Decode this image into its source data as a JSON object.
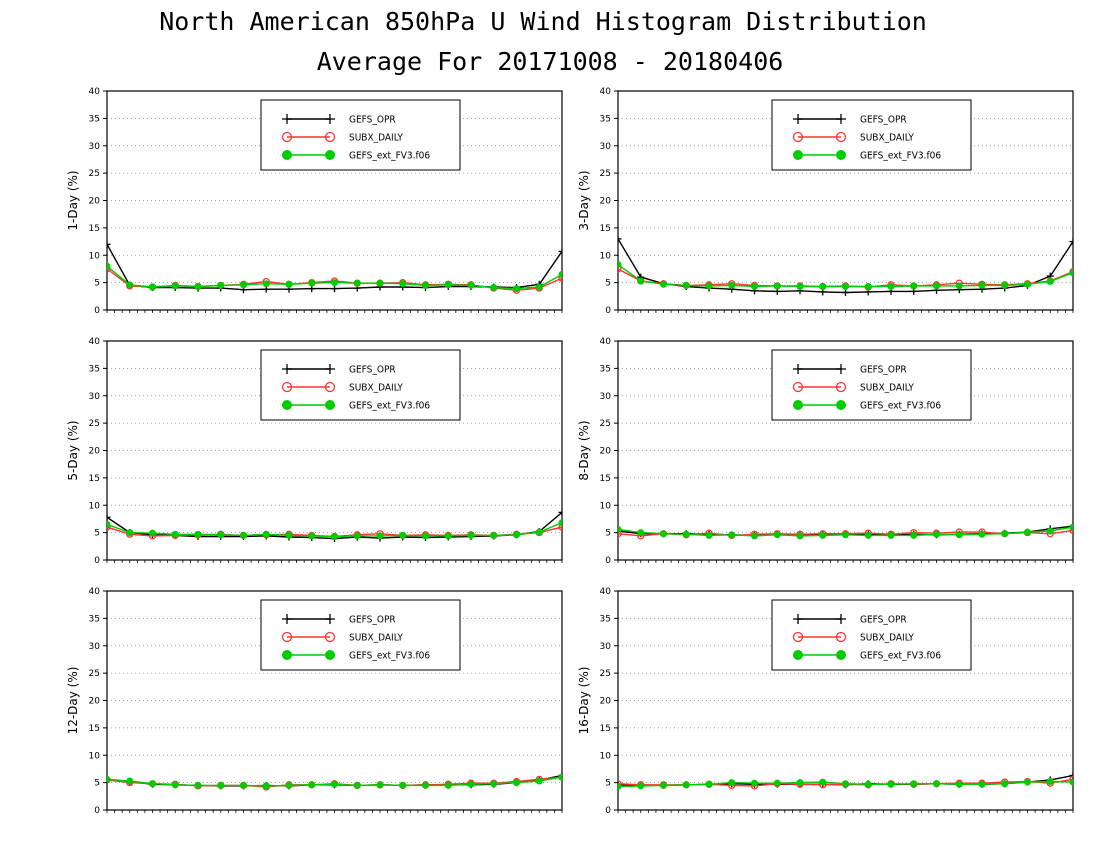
{
  "title": "North American 850hPa U Wind Histogram Distribution",
  "subtitle": "Average For 20171008 - 20180406",
  "colors": {
    "GEFS_OPR": "#000000",
    "SUBX_DAILY": "#ff3333",
    "GEFS_ext_FV3.f06": "#00cc00",
    "extra": "#3355ff"
  },
  "chart_data": [
    {
      "type": "line",
      "ylabel": "1-Day (%)",
      "ylim": [
        0,
        40
      ],
      "yticks": [
        0,
        5,
        10,
        15,
        20,
        25,
        30,
        35,
        40
      ],
      "grid": true,
      "legend": "top-center",
      "x": [
        1,
        2,
        3,
        4,
        5,
        6,
        7,
        8,
        9,
        10,
        11,
        12,
        13,
        14,
        15,
        16,
        17,
        18,
        19,
        20,
        21
      ],
      "series": [
        {
          "name": "GEFS_OPR",
          "marker": "plus",
          "values": [
            12.0,
            4.5,
            4.1,
            4.1,
            4.0,
            4.0,
            3.7,
            3.8,
            3.8,
            3.9,
            3.9,
            4.0,
            4.2,
            4.2,
            4.1,
            4.3,
            4.3,
            4.2,
            4.1,
            4.7,
            10.7
          ]
        },
        {
          "name": "SUBX_DAILY",
          "marker": "circle",
          "values": [
            7.5,
            4.4,
            4.2,
            4.5,
            4.3,
            4.5,
            4.7,
            5.2,
            4.7,
            5.0,
            5.3,
            4.9,
            4.9,
            5.0,
            4.6,
            4.7,
            4.6,
            4.0,
            3.6,
            4.0,
            5.8
          ]
        },
        {
          "name": "GEFS_ext_FV3.f06",
          "marker": "dot",
          "values": [
            8.0,
            4.6,
            4.2,
            4.4,
            4.3,
            4.5,
            4.6,
            4.8,
            4.7,
            4.9,
            5.0,
            4.9,
            4.9,
            4.8,
            4.5,
            4.6,
            4.5,
            4.1,
            3.9,
            4.2,
            6.5
          ]
        }
      ]
    },
    {
      "type": "line",
      "ylabel": "3-Day (%)",
      "ylim": [
        0,
        40
      ],
      "yticks": [
        0,
        5,
        10,
        15,
        20,
        25,
        30,
        35,
        40
      ],
      "grid": true,
      "legend": "top-center",
      "x": [
        1,
        2,
        3,
        4,
        5,
        6,
        7,
        8,
        9,
        10,
        11,
        12,
        13,
        14,
        15,
        16,
        17,
        18,
        19,
        20,
        21
      ],
      "series": [
        {
          "name": "GEFS_OPR",
          "marker": "plus",
          "values": [
            13.0,
            6.0,
            4.8,
            4.3,
            4.0,
            3.8,
            3.5,
            3.4,
            3.5,
            3.3,
            3.2,
            3.3,
            3.4,
            3.4,
            3.6,
            3.7,
            3.8,
            4.0,
            4.5,
            6.2,
            12.5
          ]
        },
        {
          "name": "SUBX_DAILY",
          "marker": "circle",
          "values": [
            7.5,
            5.3,
            4.8,
            4.5,
            4.6,
            4.8,
            4.5,
            4.4,
            4.4,
            4.3,
            4.4,
            4.2,
            4.6,
            4.4,
            4.6,
            4.9,
            4.7,
            4.6,
            4.8,
            5.3,
            7.0
          ]
        },
        {
          "name": "GEFS_ext_FV3.f06",
          "marker": "dot",
          "values": [
            8.3,
            5.3,
            4.7,
            4.5,
            4.4,
            4.5,
            4.3,
            4.4,
            4.3,
            4.3,
            4.3,
            4.3,
            4.3,
            4.4,
            4.4,
            4.4,
            4.5,
            4.5,
            4.7,
            5.2,
            6.8
          ]
        }
      ]
    },
    {
      "type": "line",
      "ylabel": "5-Day (%)",
      "ylim": [
        0,
        40
      ],
      "yticks": [
        0,
        5,
        10,
        15,
        20,
        25,
        30,
        35,
        40
      ],
      "grid": true,
      "legend": "top-center",
      "x": [
        1,
        2,
        3,
        4,
        5,
        6,
        7,
        8,
        9,
        10,
        11,
        12,
        13,
        14,
        15,
        16,
        17,
        18,
        19,
        20,
        21
      ],
      "series": [
        {
          "name": "GEFS_OPR",
          "marker": "plus",
          "values": [
            7.8,
            5.0,
            4.6,
            4.5,
            4.3,
            4.3,
            4.3,
            4.4,
            4.2,
            4.1,
            3.9,
            4.2,
            4.0,
            4.2,
            4.1,
            4.2,
            4.3,
            4.4,
            4.6,
            5.2,
            8.7
          ]
        },
        {
          "name": "SUBX_DAILY",
          "marker": "circle",
          "values": [
            6.0,
            4.7,
            4.4,
            4.5,
            4.6,
            4.7,
            4.5,
            4.6,
            4.7,
            4.5,
            4.3,
            4.6,
            4.8,
            4.5,
            4.6,
            4.5,
            4.6,
            4.5,
            4.7,
            5.0,
            6.0
          ]
        },
        {
          "name": "GEFS_ext_FV3.f06",
          "marker": "dot",
          "values": [
            6.5,
            5.0,
            4.9,
            4.7,
            4.7,
            4.6,
            4.5,
            4.7,
            4.5,
            4.4,
            4.3,
            4.4,
            4.4,
            4.5,
            4.4,
            4.4,
            4.5,
            4.5,
            4.6,
            5.1,
            6.8
          ]
        }
      ]
    },
    {
      "type": "line",
      "ylabel": "8-Day (%)",
      "ylim": [
        0,
        40
      ],
      "yticks": [
        0,
        5,
        10,
        15,
        20,
        25,
        30,
        35,
        40
      ],
      "grid": true,
      "legend": "top-center",
      "x": [
        1,
        2,
        3,
        4,
        5,
        6,
        7,
        8,
        9,
        10,
        11,
        12,
        13,
        14,
        15,
        16,
        17,
        18,
        19,
        20,
        21
      ],
      "series": [
        {
          "name": "GEFS_OPR",
          "marker": "plus",
          "values": [
            5.3,
            4.8,
            4.8,
            4.8,
            4.7,
            4.6,
            4.5,
            4.7,
            4.6,
            4.6,
            4.7,
            4.7,
            4.6,
            4.7,
            4.6,
            4.7,
            4.8,
            4.9,
            5.1,
            5.7,
            6.2
          ]
        },
        {
          "name": "SUBX_DAILY",
          "marker": "circle",
          "values": [
            4.8,
            4.4,
            4.8,
            4.6,
            4.9,
            4.5,
            4.7,
            4.8,
            4.7,
            4.8,
            4.8,
            4.9,
            4.7,
            5.0,
            4.9,
            5.1,
            5.1,
            4.8,
            5.0,
            4.8,
            5.4
          ]
        },
        {
          "name": "GEFS_ext_FV3.f06",
          "marker": "dot",
          "values": [
            5.6,
            5.0,
            4.8,
            4.7,
            4.5,
            4.6,
            4.4,
            4.6,
            4.4,
            4.5,
            4.6,
            4.5,
            4.5,
            4.5,
            4.7,
            4.6,
            4.7,
            4.8,
            5.1,
            5.3,
            6.0
          ]
        }
      ]
    },
    {
      "type": "line",
      "ylabel": "12-Day (%)",
      "ylim": [
        0,
        40
      ],
      "yticks": [
        0,
        5,
        10,
        15,
        20,
        25,
        30,
        35,
        40
      ],
      "grid": true,
      "legend": "top-center",
      "x": [
        1,
        2,
        3,
        4,
        5,
        6,
        7,
        8,
        9,
        10,
        11,
        12,
        13,
        14,
        15,
        16,
        17,
        18,
        19,
        20,
        21
      ],
      "series": [
        {
          "name": "GEFS_OPR",
          "marker": "plus",
          "values": [
            5.5,
            5.2,
            4.7,
            4.6,
            4.5,
            4.4,
            4.4,
            4.5,
            4.4,
            4.6,
            4.6,
            4.5,
            4.6,
            4.5,
            4.6,
            4.6,
            4.6,
            4.7,
            5.0,
            5.5,
            6.3
          ]
        },
        {
          "name": "SUBX_DAILY",
          "marker": "circle",
          "values": [
            5.5,
            5.0,
            4.8,
            4.7,
            4.4,
            4.5,
            4.5,
            4.2,
            4.6,
            4.6,
            4.8,
            4.5,
            4.6,
            4.5,
            4.6,
            4.7,
            4.9,
            4.9,
            5.2,
            5.6,
            6.0
          ]
        },
        {
          "name": "GEFS_ext_FV3.f06",
          "marker": "dot",
          "values": [
            5.6,
            5.3,
            4.8,
            4.6,
            4.5,
            4.5,
            4.5,
            4.4,
            4.5,
            4.6,
            4.7,
            4.5,
            4.6,
            4.5,
            4.5,
            4.5,
            4.7,
            4.8,
            5.0,
            5.3,
            6.0
          ]
        }
      ]
    },
    {
      "type": "line",
      "ylabel": "16-Day (%)",
      "ylim": [
        0,
        40
      ],
      "yticks": [
        0,
        5,
        10,
        15,
        20,
        25,
        30,
        35,
        40
      ],
      "grid": true,
      "legend": "top-center",
      "x": [
        1,
        2,
        3,
        4,
        5,
        6,
        7,
        8,
        9,
        10,
        11,
        12,
        13,
        14,
        15,
        16,
        17,
        18,
        19,
        20,
        21
      ],
      "series": [
        {
          "name": "GEFS_OPR",
          "marker": "plus",
          "values": [
            4.6,
            4.6,
            4.5,
            4.6,
            4.7,
            4.8,
            4.7,
            4.7,
            4.7,
            4.7,
            4.6,
            4.8,
            4.7,
            4.7,
            4.8,
            4.7,
            4.7,
            4.8,
            5.1,
            5.5,
            6.3
          ]
        },
        {
          "name": "SUBX_DAILY",
          "marker": "circle",
          "values": [
            4.8,
            4.6,
            4.6,
            4.6,
            4.7,
            4.5,
            4.4,
            4.8,
            4.7,
            4.6,
            4.7,
            4.6,
            4.8,
            4.7,
            4.8,
            4.9,
            4.9,
            5.1,
            5.2,
            4.9,
            5.6
          ]
        },
        {
          "name": "GEFS_ext_FV3.f06",
          "marker": "dot",
          "values": [
            4.3,
            4.4,
            4.5,
            4.6,
            4.7,
            5.0,
            4.9,
            4.9,
            5.0,
            5.1,
            4.8,
            4.7,
            4.7,
            4.8,
            4.8,
            4.7,
            4.7,
            4.8,
            5.1,
            5.2,
            5.1
          ]
        }
      ]
    }
  ]
}
